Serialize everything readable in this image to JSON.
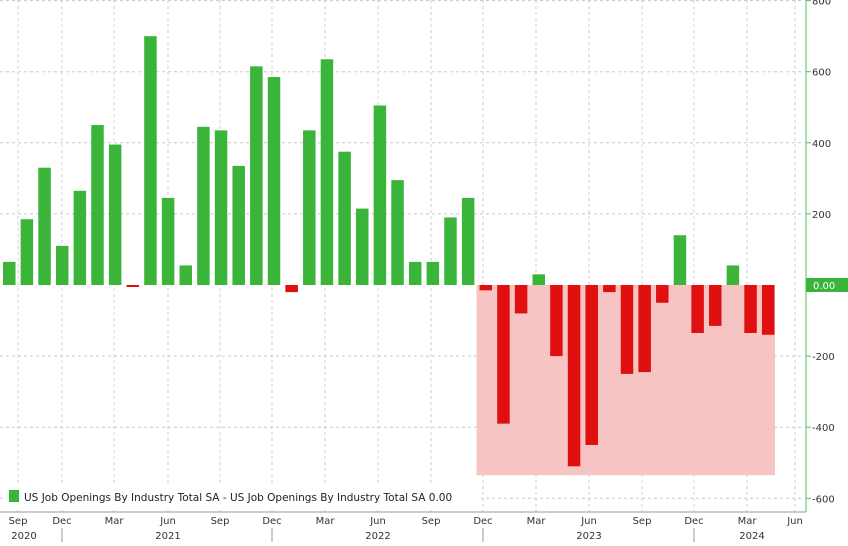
{
  "chart_data": {
    "type": "bar",
    "y_axis_side": "right",
    "ylim": [
      -620,
      800
    ],
    "y_ticks": [
      800,
      600,
      400,
      200,
      -200,
      -400,
      -600
    ],
    "last_value_label": "0.00",
    "legend": {
      "label": "US Job Openings By Industry Total SA - US Job Openings By Industry Total SA 0.00",
      "position": "bottom-left"
    },
    "month_labels": [
      "Sep",
      "Dec",
      "Mar",
      "Jun",
      "Sep",
      "Dec",
      "Mar",
      "Jun",
      "Sep",
      "Dec",
      "Mar",
      "Jun",
      "Sep",
      "Dec",
      "Mar",
      "Jun"
    ],
    "year_labels": [
      "2020",
      "2021",
      "2022",
      "2023",
      "2024"
    ],
    "series": [
      {
        "values": [
          65,
          185,
          330,
          110,
          265,
          450,
          395,
          -5,
          700,
          245,
          55,
          445,
          435,
          335,
          615,
          585,
          -20,
          435,
          635,
          375,
          215,
          505,
          295,
          65,
          65,
          190,
          245,
          -15,
          -390,
          -80,
          30,
          -200,
          -510,
          -450,
          -20,
          -250,
          -245,
          -50,
          140,
          -135,
          -115,
          55,
          -135,
          -140
        ]
      }
    ],
    "colors": {
      "positive": "#3ab53a",
      "negative": "#e01010",
      "shade": "#f7c4c4",
      "axis": "#52c152"
    }
  }
}
